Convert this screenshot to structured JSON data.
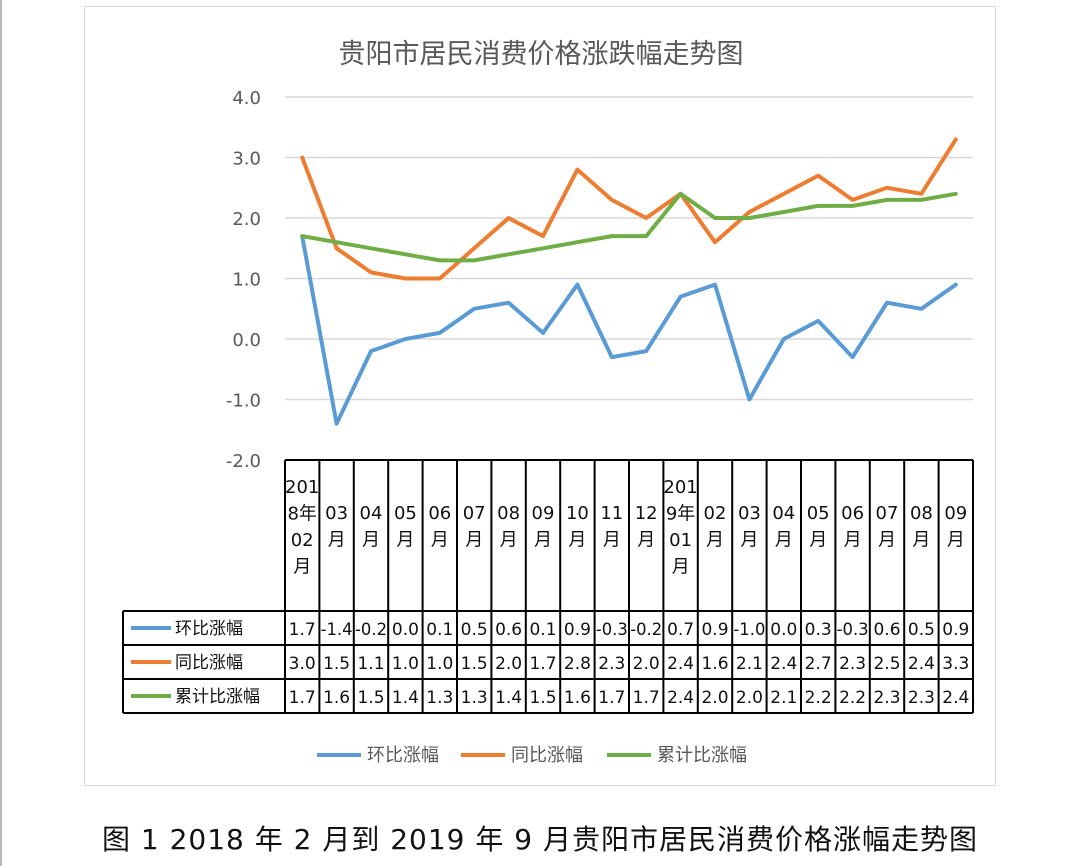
{
  "caption": "图 1   2018 年 2 月到 2019 年 9 月贵阳市居民消费价格涨幅走势图",
  "chart_data": {
    "type": "line",
    "title": "贵阳市居民消费价格涨跌幅走势图",
    "xlabel": "",
    "ylabel": "",
    "ylim": [
      -2.0,
      4.0
    ],
    "yticks": [
      "4.0",
      "3.0",
      "2.0",
      "1.0",
      "0.0",
      "-1.0",
      "-2.0"
    ],
    "grid": true,
    "legend_position": "bottom",
    "data_table": true,
    "categories": [
      "2018年02月",
      "03月",
      "04月",
      "05月",
      "06月",
      "07月",
      "08月",
      "09月",
      "10月",
      "11月",
      "12月",
      "2019年01月",
      "02月",
      "03月",
      "04月",
      "05月",
      "06月",
      "07月",
      "08月",
      "09月"
    ],
    "category_label_lines": [
      [
        "201",
        "8年",
        "02",
        "月"
      ],
      [
        "03",
        "月"
      ],
      [
        "04",
        "月"
      ],
      [
        "05",
        "月"
      ],
      [
        "06",
        "月"
      ],
      [
        "07",
        "月"
      ],
      [
        "08",
        "月"
      ],
      [
        "09",
        "月"
      ],
      [
        "10",
        "月"
      ],
      [
        "11",
        "月"
      ],
      [
        "12",
        "月"
      ],
      [
        "201",
        "9年",
        "01",
        "月"
      ],
      [
        "02",
        "月"
      ],
      [
        "03",
        "月"
      ],
      [
        "04",
        "月"
      ],
      [
        "05",
        "月"
      ],
      [
        "06",
        "月"
      ],
      [
        "07",
        "月"
      ],
      [
        "08",
        "月"
      ],
      [
        "09",
        "月"
      ]
    ],
    "series": [
      {
        "name": "环比涨幅",
        "color": "#5b9bd5",
        "values": [
          1.7,
          -1.4,
          -0.2,
          0.0,
          0.1,
          0.5,
          0.6,
          0.1,
          0.9,
          -0.3,
          -0.2,
          0.7,
          0.9,
          -1.0,
          0.0,
          0.3,
          -0.3,
          0.6,
          0.5,
          0.9
        ],
        "labels": [
          "1.7",
          "-1.4",
          "-0.2",
          "0.0",
          "0.1",
          "0.5",
          "0.6",
          "0.1",
          "0.9",
          "-0.3",
          "-0.2",
          "0.7",
          "0.9",
          "-1.0",
          "0.0",
          "0.3",
          "-0.3",
          "0.6",
          "0.5",
          "0.9"
        ]
      },
      {
        "name": "同比涨幅",
        "color": "#ed7d31",
        "values": [
          3.0,
          1.5,
          1.1,
          1.0,
          1.0,
          1.5,
          2.0,
          1.7,
          2.8,
          2.3,
          2.0,
          2.4,
          1.6,
          2.1,
          2.4,
          2.7,
          2.3,
          2.5,
          2.4,
          3.3
        ],
        "labels": [
          "3.0",
          "1.5",
          "1.1",
          "1.0",
          "1.0",
          "1.5",
          "2.0",
          "1.7",
          "2.8",
          "2.3",
          "2.0",
          "2.4",
          "1.6",
          "2.1",
          "2.4",
          "2.7",
          "2.3",
          "2.5",
          "2.4",
          "3.3"
        ]
      },
      {
        "name": "累计比涨幅",
        "color": "#70ad47",
        "values": [
          1.7,
          1.6,
          1.5,
          1.4,
          1.3,
          1.3,
          1.4,
          1.5,
          1.6,
          1.7,
          1.7,
          2.4,
          2.0,
          2.0,
          2.1,
          2.2,
          2.2,
          2.3,
          2.3,
          2.4
        ],
        "labels": [
          "1.7",
          "1.6",
          "1.5",
          "1.4",
          "1.3",
          "1.3",
          "1.4",
          "1.5",
          "1.6",
          "1.7",
          "1.7",
          "2.4",
          "2.0",
          "2.0",
          "2.1",
          "2.2",
          "2.2",
          "2.3",
          "2.3",
          "2.4"
        ]
      }
    ]
  }
}
